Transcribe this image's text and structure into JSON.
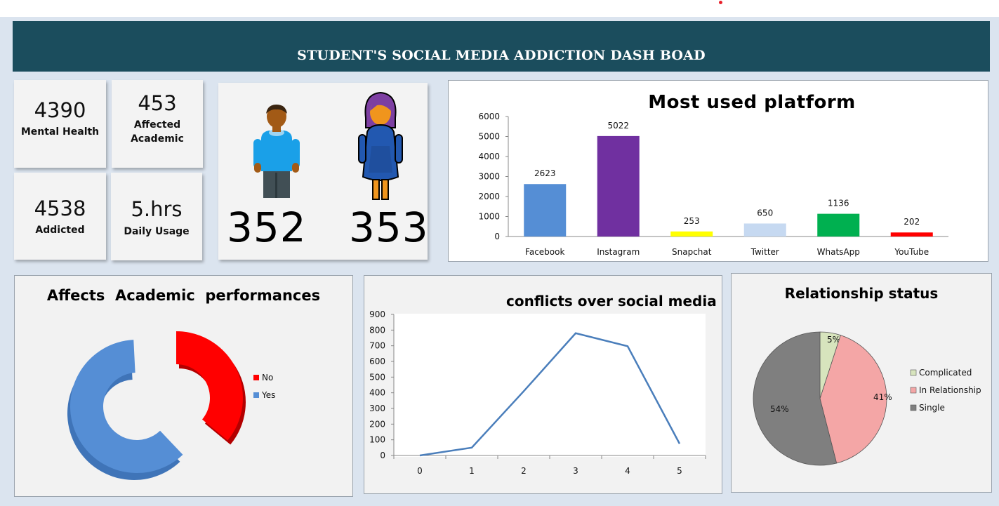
{
  "dashboard": {
    "title": "STUDENT'S SOCIAL MEDIA ADDICTION DASH BOAD"
  },
  "kpis": {
    "mental_health": {
      "value": "4390",
      "label": "Mental Health"
    },
    "affected_academic": {
      "value": "453",
      "label_line1": "Affected",
      "label_line2": "Academic"
    },
    "addicted": {
      "value": "4538",
      "label": "Addicted"
    },
    "daily_usage": {
      "value": "5.hrs",
      "label": "Daily Usage"
    }
  },
  "gender": {
    "male_count": "352",
    "female_count": "353"
  },
  "colors": {
    "banner": "#1b4d5d",
    "facebook": "#558ed5",
    "instagram": "#7030a0",
    "snapchat": "#ffff00",
    "twitter": "#c6d9f1",
    "whatsapp": "#00b050",
    "youtube": "#ff0000",
    "donut_no": "#ff0000",
    "donut_yes": "#558ed5",
    "pie_complicated": "#d7e4bd",
    "pie_relationship": "#f4a6a6",
    "pie_single": "#7f7f7f"
  },
  "icons": {
    "male": "male-student-icon",
    "female": "female-student-icon"
  },
  "chart_data": [
    {
      "type": "bar",
      "title": "Most used platform",
      "categories": [
        "Facebook",
        "Instagram",
        "Snapchat",
        "Twitter",
        "WhatsApp",
        "YouTube"
      ],
      "values": [
        2623,
        5022,
        253,
        650,
        1136,
        202
      ],
      "data_labels": [
        "2623",
        "5022",
        "253",
        "650",
        "1136",
        "202"
      ],
      "ylim": [
        0,
        6000
      ],
      "yticks": [
        "0",
        "1000",
        "2000",
        "3000",
        "4000",
        "5000",
        "6000"
      ],
      "grid": false
    },
    {
      "type": "pie",
      "title": "Affects  Academic  performances",
      "variant": "doughnut-3d",
      "labels": [
        "No",
        "Yes"
      ],
      "values": [
        36,
        64
      ],
      "legend": "right"
    },
    {
      "type": "line",
      "title": "conflicts over social media",
      "x": [
        0,
        1,
        2,
        3,
        4,
        5
      ],
      "y": [
        0,
        50,
        410,
        780,
        697,
        75
      ],
      "xticks": [
        "0",
        "1",
        "2",
        "3",
        "4",
        "5"
      ],
      "yticks": [
        "0",
        "100",
        "200",
        "300",
        "400",
        "500",
        "600",
        "700",
        "800",
        "900"
      ],
      "ylim": [
        0,
        900
      ],
      "grid": false
    },
    {
      "type": "pie",
      "title": "Relationship status",
      "labels": [
        "Complicated",
        "In Relationship",
        "Single"
      ],
      "values": [
        5,
        41,
        54
      ],
      "data_labels": [
        "5%",
        "41%",
        "54%"
      ],
      "legend": "right"
    }
  ]
}
